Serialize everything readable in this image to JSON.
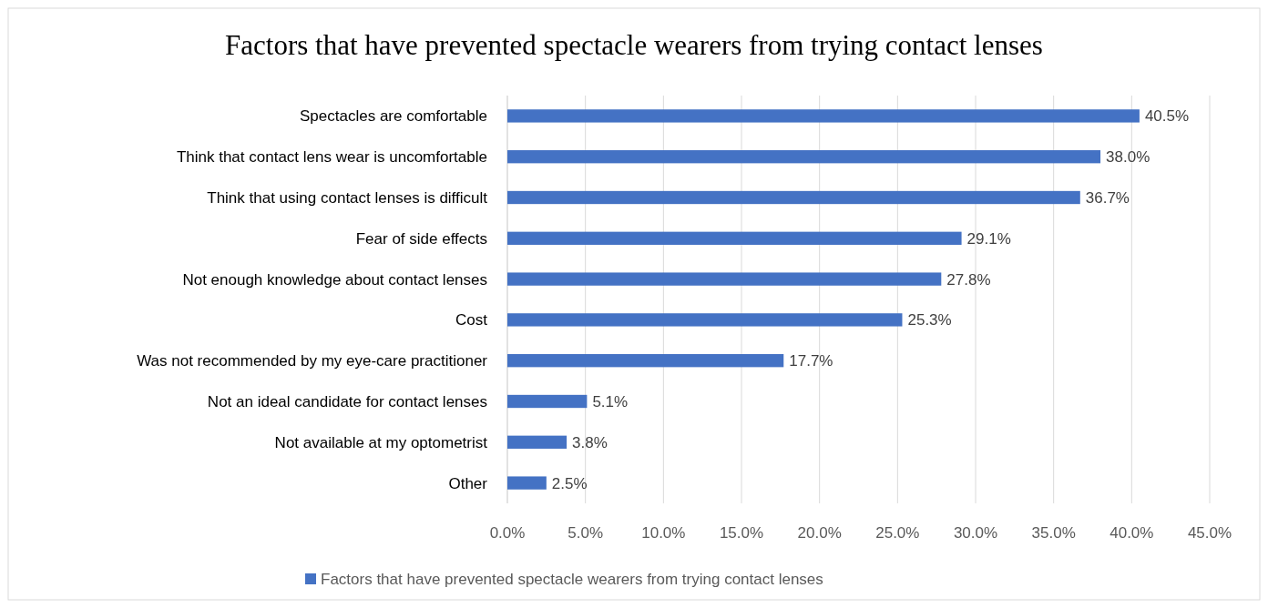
{
  "chart_data": {
    "type": "bar",
    "orientation": "horizontal",
    "title": "Factors that have prevented spectacle wearers from trying contact lenses",
    "categories": [
      "Spectacles are comfortable",
      "Think that contact lens wear is uncomfortable",
      "Think that using contact lenses is difficult",
      "Fear of side effects",
      "Not enough knowledge about contact lenses",
      "Cost",
      "Was not recommended by my eye-care practitioner",
      "Not an ideal candidate for contact lenses",
      "Not available at my optometrist",
      "Other"
    ],
    "series": [
      {
        "name": "Factors that have prevented spectacle wearers from trying contact lenses",
        "color": "#4472c4",
        "values": [
          40.5,
          38.0,
          36.7,
          29.1,
          27.8,
          25.3,
          17.7,
          5.1,
          3.8,
          2.5
        ],
        "value_labels": [
          "40.5%",
          "38.0%",
          "36.7%",
          "29.1%",
          "27.8%",
          "25.3%",
          "17.7%",
          "5.1%",
          "3.8%",
          "2.5%"
        ]
      }
    ],
    "xlim": [
      0,
      45
    ],
    "xticks": [
      {
        "value": 0,
        "label": "0.0%"
      },
      {
        "value": 5,
        "label": "5.0%"
      },
      {
        "value": 10,
        "label": "10.0%"
      },
      {
        "value": 15,
        "label": "15.0%"
      },
      {
        "value": 20,
        "label": "20.0%"
      },
      {
        "value": 25,
        "label": "25.0%"
      },
      {
        "value": 30,
        "label": "30.0%"
      },
      {
        "value": 35,
        "label": "35.0%"
      },
      {
        "value": 40,
        "label": "40.0%"
      },
      {
        "value": 45,
        "label": "45.0%"
      }
    ],
    "grid": "x",
    "legend": "bottom"
  }
}
